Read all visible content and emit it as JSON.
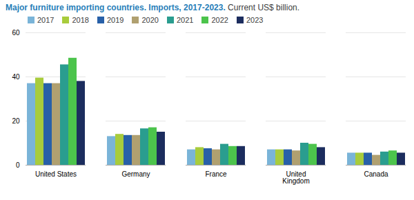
{
  "chart_data": {
    "type": "bar",
    "title": "Major furniture importing countries. Imports, 2017-2023.",
    "subtitle": "Current US$ billion.",
    "categories": [
      "United States",
      "Germany",
      "France",
      "United\nKingdom",
      "Canada"
    ],
    "series": [
      {
        "name": "2017",
        "color": "#7ab4d8",
        "values": [
          37,
          13,
          7,
          7,
          5.5
        ]
      },
      {
        "name": "2018",
        "color": "#a8cc3c",
        "values": [
          39.5,
          14,
          8,
          7,
          5.5
        ]
      },
      {
        "name": "2019",
        "color": "#2860a8",
        "values": [
          37,
          13.5,
          7.5,
          7,
          5.5
        ]
      },
      {
        "name": "2020",
        "color": "#b0a070",
        "values": [
          37,
          13.5,
          7,
          6.5,
          4.5
        ]
      },
      {
        "name": "2021",
        "color": "#2a9d8f",
        "values": [
          45.5,
          16.5,
          9.5,
          10,
          6
        ]
      },
      {
        "name": "2022",
        "color": "#4cc44c",
        "values": [
          48.5,
          17,
          8.5,
          9.5,
          6.5
        ]
      },
      {
        "name": "2023",
        "color": "#1c2d5e",
        "values": [
          38,
          15,
          8.5,
          8,
          5.5
        ]
      }
    ],
    "ylim": [
      0,
      60
    ],
    "yticks": [
      0,
      20,
      40,
      60
    ],
    "grid": true,
    "legend": "top"
  }
}
